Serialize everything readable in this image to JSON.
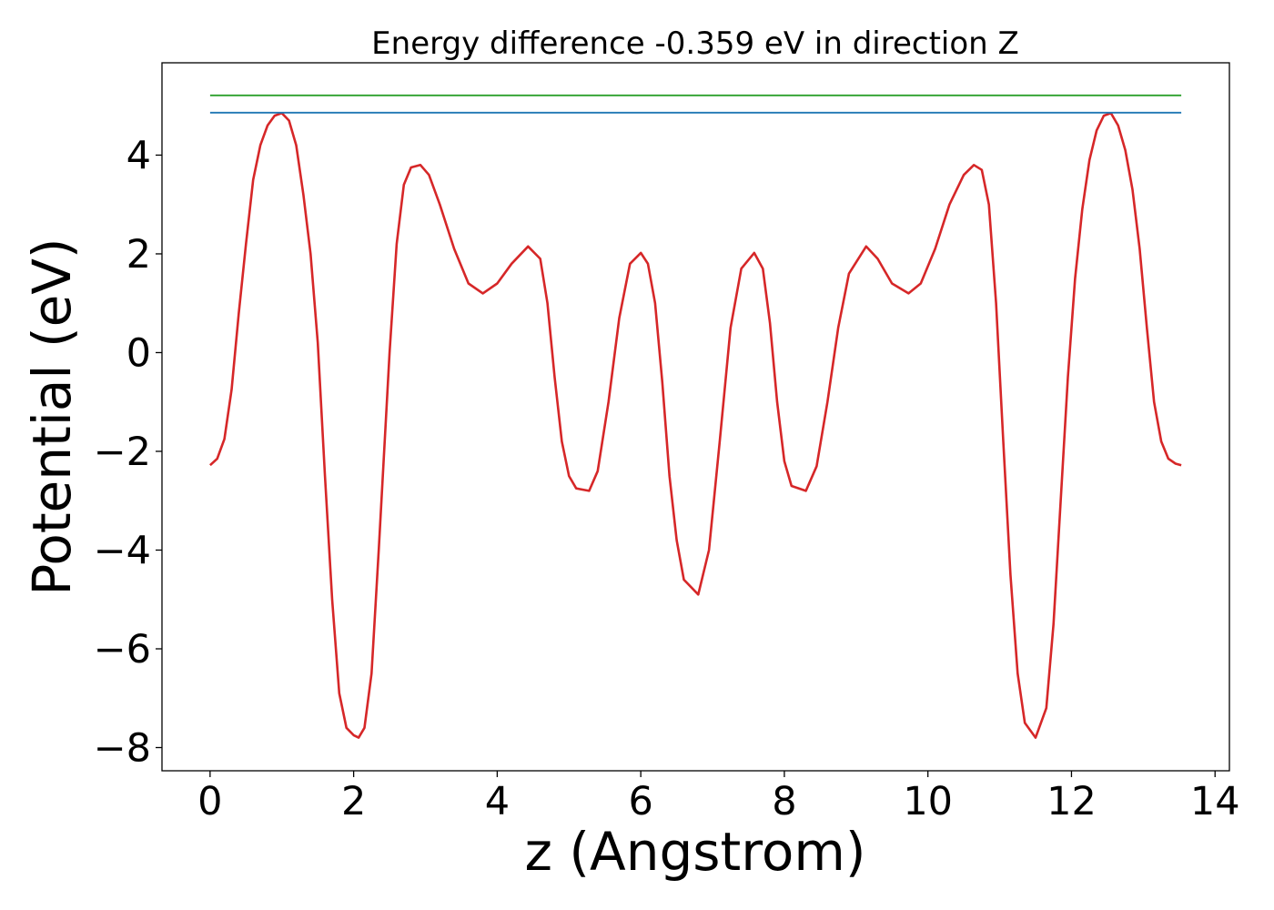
{
  "chart_data": {
    "type": "line",
    "title": "Energy difference -0.359 eV in direction Z",
    "xlabel": "z (Angstrom)",
    "ylabel": "Potential (eV)",
    "xlim": [
      -0.67,
      14.2
    ],
    "ylim": [
      -8.47,
      5.87
    ],
    "xticks": [
      0,
      2,
      4,
      6,
      8,
      10,
      12,
      14
    ],
    "xtick_labels": [
      "0",
      "2",
      "4",
      "6",
      "8",
      "10",
      "12",
      "14"
    ],
    "yticks": [
      -8,
      -6,
      -4,
      -2,
      0,
      2,
      4
    ],
    "ytick_labels": [
      "−8",
      "−6",
      "−4",
      "−2",
      "0",
      "2",
      "4"
    ],
    "grid": false,
    "legend": "none",
    "series": [
      {
        "color": "#d62728",
        "x": [
          0,
          0.1,
          0.2,
          0.3,
          0.4,
          0.5,
          0.6,
          0.7,
          0.8,
          0.9,
          1.0,
          1.1,
          1.2,
          1.3,
          1.4,
          1.5,
          1.6,
          1.7,
          1.8,
          1.9,
          2.0,
          2.07,
          2.15,
          2.25,
          2.35,
          2.5,
          2.6,
          2.7,
          2.8,
          2.93,
          3.05,
          3.2,
          3.4,
          3.6,
          3.8,
          4.0,
          4.2,
          4.43,
          4.6,
          4.7,
          4.8,
          4.9,
          5.0,
          5.1,
          5.28,
          5.4,
          5.55,
          5.7,
          5.85,
          6.0,
          6.1,
          6.2,
          6.3,
          6.4,
          6.5,
          6.6,
          6.8,
          6.95,
          7.1,
          7.25,
          7.4,
          7.58,
          7.7,
          7.8,
          7.9,
          8.0,
          8.1,
          8.3,
          8.45,
          8.6,
          8.75,
          8.9,
          9.14,
          9.3,
          9.5,
          9.73,
          9.9,
          10.1,
          10.3,
          10.5,
          10.64,
          10.75,
          10.85,
          10.95,
          11.05,
          11.15,
          11.25,
          11.35,
          11.5,
          11.65,
          11.75,
          11.85,
          11.95,
          12.05,
          12.15,
          12.25,
          12.35,
          12.45,
          12.55,
          12.65,
          12.75,
          12.85,
          12.95,
          13.05,
          13.15,
          13.25,
          13.35,
          13.45,
          13.53
        ],
        "y": [
          -2.28,
          -2.15,
          -1.75,
          -0.75,
          0.8,
          2.2,
          3.5,
          4.2,
          4.6,
          4.8,
          4.85,
          4.7,
          4.2,
          3.2,
          2.0,
          0.2,
          -2.5,
          -5.0,
          -6.9,
          -7.6,
          -7.75,
          -7.8,
          -7.6,
          -6.5,
          -4.0,
          0.0,
          2.2,
          3.4,
          3.75,
          3.8,
          3.6,
          3.0,
          2.1,
          1.4,
          1.2,
          1.4,
          1.8,
          2.15,
          1.9,
          1.0,
          -0.5,
          -1.8,
          -2.5,
          -2.75,
          -2.8,
          -2.4,
          -1.0,
          0.7,
          1.8,
          2.02,
          1.8,
          1.0,
          -0.6,
          -2.5,
          -3.8,
          -4.6,
          -4.9,
          -4.0,
          -1.8,
          0.5,
          1.7,
          2.02,
          1.7,
          0.6,
          -1.0,
          -2.2,
          -2.7,
          -2.8,
          -2.3,
          -1.0,
          0.5,
          1.6,
          2.15,
          1.9,
          1.4,
          1.2,
          1.4,
          2.1,
          3.0,
          3.6,
          3.8,
          3.7,
          3.0,
          1.0,
          -1.8,
          -4.5,
          -6.5,
          -7.5,
          -7.8,
          -7.2,
          -5.5,
          -3.0,
          -0.5,
          1.5,
          2.9,
          3.9,
          4.5,
          4.8,
          4.85,
          4.6,
          4.1,
          3.3,
          2.1,
          0.5,
          -1.0,
          -1.8,
          -2.15,
          -2.25,
          -2.28
        ]
      },
      {
        "color": "#1f77b4",
        "x": [
          0,
          13.53
        ],
        "y": [
          4.86,
          4.86
        ]
      },
      {
        "color": "#2ca02c",
        "x": [
          0,
          13.53
        ],
        "y": [
          5.21,
          5.21
        ]
      }
    ]
  }
}
